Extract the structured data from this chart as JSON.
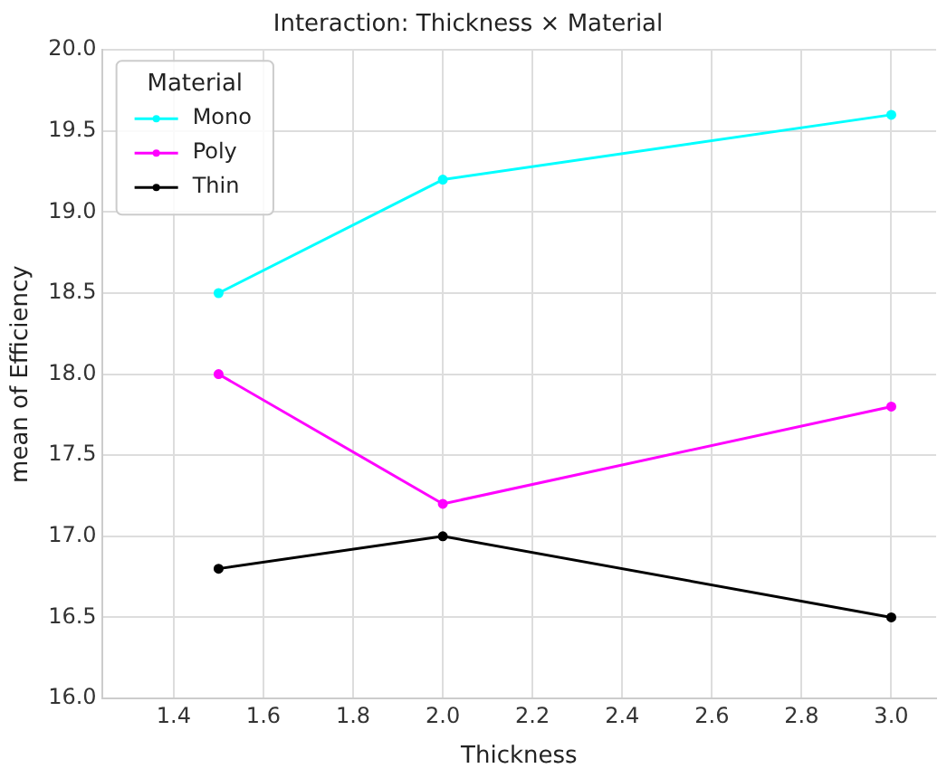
{
  "chart_data": {
    "type": "line",
    "title": "Interaction: Thickness × Material",
    "xlabel": "Thickness",
    "ylabel": "mean of Efficiency",
    "legend_title": "Material",
    "x": [
      1.5,
      2.0,
      3.0
    ],
    "series": [
      {
        "name": "Mono",
        "color": "#00ffff",
        "values": [
          18.5,
          19.2,
          19.6
        ]
      },
      {
        "name": "Poly",
        "color": "#ff00ff",
        "values": [
          18.0,
          17.2,
          17.8
        ]
      },
      {
        "name": "Thin",
        "color": "#000000",
        "values": [
          16.8,
          17.0,
          16.5
        ]
      }
    ],
    "xlim": [
      1.24,
      3.1
    ],
    "xticks": [
      {
        "value": 1.4,
        "label": "1.4"
      },
      {
        "value": 1.6,
        "label": "1.6"
      },
      {
        "value": 1.8,
        "label": "1.8"
      },
      {
        "value": 2.0,
        "label": "2.0"
      },
      {
        "value": 2.2,
        "label": "2.2"
      },
      {
        "value": 2.4,
        "label": "2.4"
      },
      {
        "value": 2.6,
        "label": "2.6"
      },
      {
        "value": 2.8,
        "label": "2.8"
      },
      {
        "value": 3.0,
        "label": "3.0"
      }
    ],
    "ylim": [
      16,
      20
    ],
    "yticks": [
      {
        "value": 16,
        "label": "16.0"
      },
      {
        "value": 16.5,
        "label": "16.5"
      },
      {
        "value": 17,
        "label": "17.0"
      },
      {
        "value": 17.5,
        "label": "17.5"
      },
      {
        "value": 18,
        "label": "18.0"
      },
      {
        "value": 18.5,
        "label": "18.5"
      },
      {
        "value": 19,
        "label": "19.0"
      },
      {
        "value": 19.5,
        "label": "19.5"
      },
      {
        "value": 20,
        "label": "20.0"
      }
    ],
    "grid": true,
    "legend": "top left",
    "marker": "circle",
    "line_style": "solid"
  }
}
